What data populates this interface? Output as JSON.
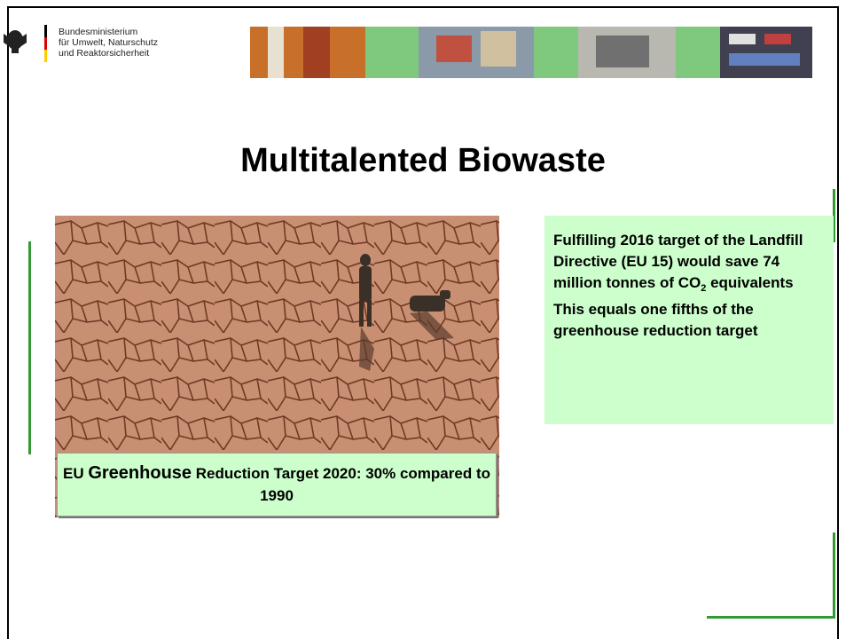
{
  "header": {
    "ministry": [
      "Bundesministerium",
      "für Umwelt, Naturschutz",
      "und Reaktorsicherheit"
    ]
  },
  "title": "Multitalented Biowaste",
  "caption": {
    "prefix": "EU ",
    "emphasis": "Greenhouse",
    "rest": " Reduction Target 2020: 30% compared to 1990"
  },
  "note": {
    "paragraph1": {
      "text": "Fulfilling 2016 target of the Landfill Directive (EU 15) would save 74 million tonnes of CO",
      "subscript": "2",
      "tail": " equivalents"
    },
    "paragraph2": "This equals one fifths of the greenhouse reduction target"
  }
}
